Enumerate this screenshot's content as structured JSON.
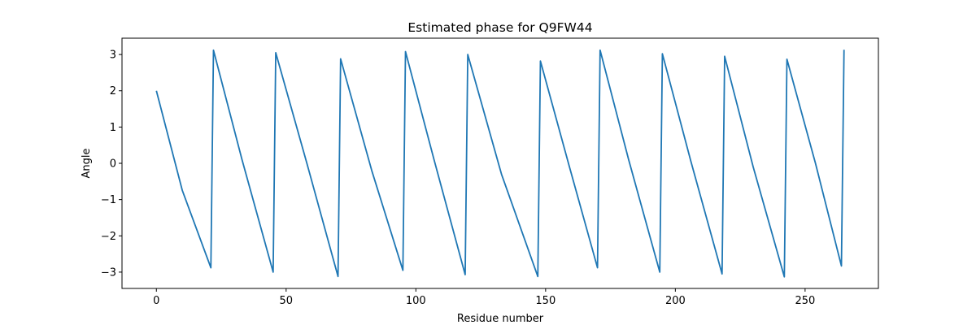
{
  "chart_data": {
    "type": "line",
    "title": "Estimated phase for Q9FW44",
    "xlabel": "Residue number",
    "ylabel": "Angle",
    "series": [
      {
        "color": "#1f77b4",
        "x": [
          0,
          10,
          21,
          22,
          33,
          45,
          46,
          58,
          70,
          71,
          83,
          95,
          96,
          107,
          119,
          120,
          133,
          147,
          148,
          159,
          170,
          171,
          182,
          194,
          195,
          206,
          218,
          219,
          230,
          242,
          243,
          254,
          264,
          265
        ],
        "values": [
          2.0,
          -0.75,
          -2.88,
          3.12,
          0.1,
          -3.0,
          3.05,
          0.0,
          -3.12,
          2.88,
          -0.2,
          -2.95,
          3.08,
          0.1,
          -3.07,
          3.0,
          -0.3,
          -3.12,
          2.82,
          -0.05,
          -2.88,
          3.12,
          0.1,
          -3.0,
          3.02,
          0.05,
          -3.05,
          2.95,
          -0.1,
          -3.13,
          2.87,
          0.0,
          -2.83,
          3.13
        ]
      }
    ],
    "xlim": [
      -13.25,
      278.25
    ],
    "xticks": [
      0,
      50,
      100,
      150,
      200,
      250
    ],
    "ylim": [
      -3.45,
      3.45
    ],
    "yticks": [
      {
        "value": -3,
        "label": "−3"
      },
      {
        "value": -2,
        "label": "−2"
      },
      {
        "value": -1,
        "label": "−1"
      },
      0,
      1,
      2,
      3
    ]
  }
}
